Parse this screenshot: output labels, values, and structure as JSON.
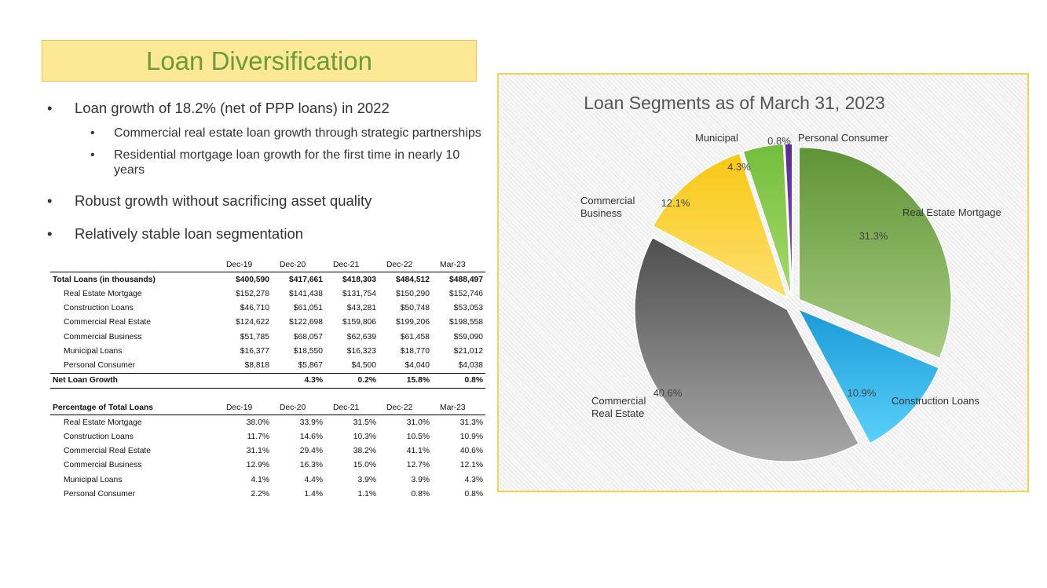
{
  "slide": {
    "title": "Loan Diversification",
    "bullets": [
      {
        "text": "Loan growth of 18.2% (net of PPP loans) in 2022",
        "sub": [
          "Commercial real estate loan growth through strategic partnerships",
          "Residential mortgage loan growth for the first time in nearly 10 years"
        ]
      },
      {
        "text": "Robust growth without sacrificing asset quality",
        "sub": []
      },
      {
        "text": "Relatively stable loan segmentation",
        "sub": []
      }
    ]
  },
  "loan_table": {
    "columns": [
      "Dec-19",
      "Dec-20",
      "Dec-21",
      "Dec-22",
      "Mar-23"
    ],
    "total": {
      "label": "Total Loans (in thousands)",
      "values": [
        "$400,590",
        "$417,661",
        "$418,303",
        "$484,512",
        "$488,497"
      ]
    },
    "rows": [
      {
        "label": "Real Estate Mortgage",
        "values": [
          "$152,278",
          "$141,438",
          "$131,754",
          "$150,290",
          "$152,746"
        ]
      },
      {
        "label": "Construction Loans",
        "values": [
          "$46,710",
          "$61,051",
          "$43,281",
          "$50,748",
          "$53,053"
        ]
      },
      {
        "label": "Commercial Real Estate",
        "values": [
          "$124,622",
          "$122,698",
          "$159,806",
          "$199,206",
          "$198,558"
        ]
      },
      {
        "label": "Commercial Business",
        "values": [
          "$51,785",
          "$68,057",
          "$62,639",
          "$61,458",
          "$59,090"
        ]
      },
      {
        "label": "Municipal Loans",
        "values": [
          "$16,377",
          "$18,550",
          "$16,323",
          "$18,770",
          "$21,012"
        ]
      },
      {
        "label": "Personal Consumer",
        "values": [
          "$8,818",
          "$5,867",
          "$4,500",
          "$4,040",
          "$4,038"
        ]
      }
    ],
    "growth": {
      "label": "Net Loan Growth",
      "values": [
        "",
        "4.3%",
        "0.2%",
        "15.8%",
        "0.8%"
      ]
    }
  },
  "pct_table": {
    "label": "Percentage of Total Loans",
    "columns": [
      "Dec-19",
      "Dec-20",
      "Dec-21",
      "Dec-22",
      "Mar-23"
    ],
    "rows": [
      {
        "label": "Real Estate Mortgage",
        "values": [
          "38.0%",
          "33.9%",
          "31.5%",
          "31.0%",
          "31.3%"
        ]
      },
      {
        "label": "Construction Loans",
        "values": [
          "11.7%",
          "14.6%",
          "10.3%",
          "10.5%",
          "10.9%"
        ]
      },
      {
        "label": "Commercial Real Estate",
        "values": [
          "31.1%",
          "29.4%",
          "38.2%",
          "41.1%",
          "40.6%"
        ]
      },
      {
        "label": "Commercial Business",
        "values": [
          "12.9%",
          "16.3%",
          "15.0%",
          "12.7%",
          "12.1%"
        ]
      },
      {
        "label": "Municipal Loans",
        "values": [
          "4.1%",
          "4.4%",
          "3.9%",
          "3.9%",
          "4.3%"
        ]
      },
      {
        "label": "Personal Consumer",
        "values": [
          "2.2%",
          "1.4%",
          "1.1%",
          "0.8%",
          "0.8%"
        ]
      }
    ]
  },
  "chart_data": {
    "type": "pie",
    "title": "Loan Segments as of March 31, 2023",
    "slices": [
      {
        "name": "Real Estate Mortgage",
        "name_lines": [
          "Real Estate Mortgage"
        ],
        "value": 31.3,
        "label": "31.3%",
        "color_light": "#a9cd83",
        "color_dark": "#5f9336"
      },
      {
        "name": "Construction Loans",
        "name_lines": [
          "Construction Loans"
        ],
        "value": 10.9,
        "label": "10.9%",
        "color_light": "#5ad0fb",
        "color_dark": "#1a9ad6"
      },
      {
        "name": "Commercial Real Estate",
        "name_lines": [
          "Commercial",
          "Real Estate"
        ],
        "value": 40.6,
        "label": "40.6%",
        "color_light": "#a8a8a8",
        "color_dark": "#4f4f4f"
      },
      {
        "name": "Commercial Business",
        "name_lines": [
          "Commercial",
          "Business"
        ],
        "value": 12.1,
        "label": "12.1%",
        "color_light": "#fde070",
        "color_dark": "#f9c813"
      },
      {
        "name": "Municipal",
        "name_lines": [
          "Municipal"
        ],
        "value": 4.3,
        "label": "4.3%",
        "color_light": "#a6d96a",
        "color_dark": "#73be3c"
      },
      {
        "name": "Personal Consumer",
        "name_lines": [
          "Personal Consumer"
        ],
        "value": 0.8,
        "label": "0.8%",
        "color_light": "#8a55c4",
        "color_dark": "#5a2a92"
      }
    ]
  }
}
